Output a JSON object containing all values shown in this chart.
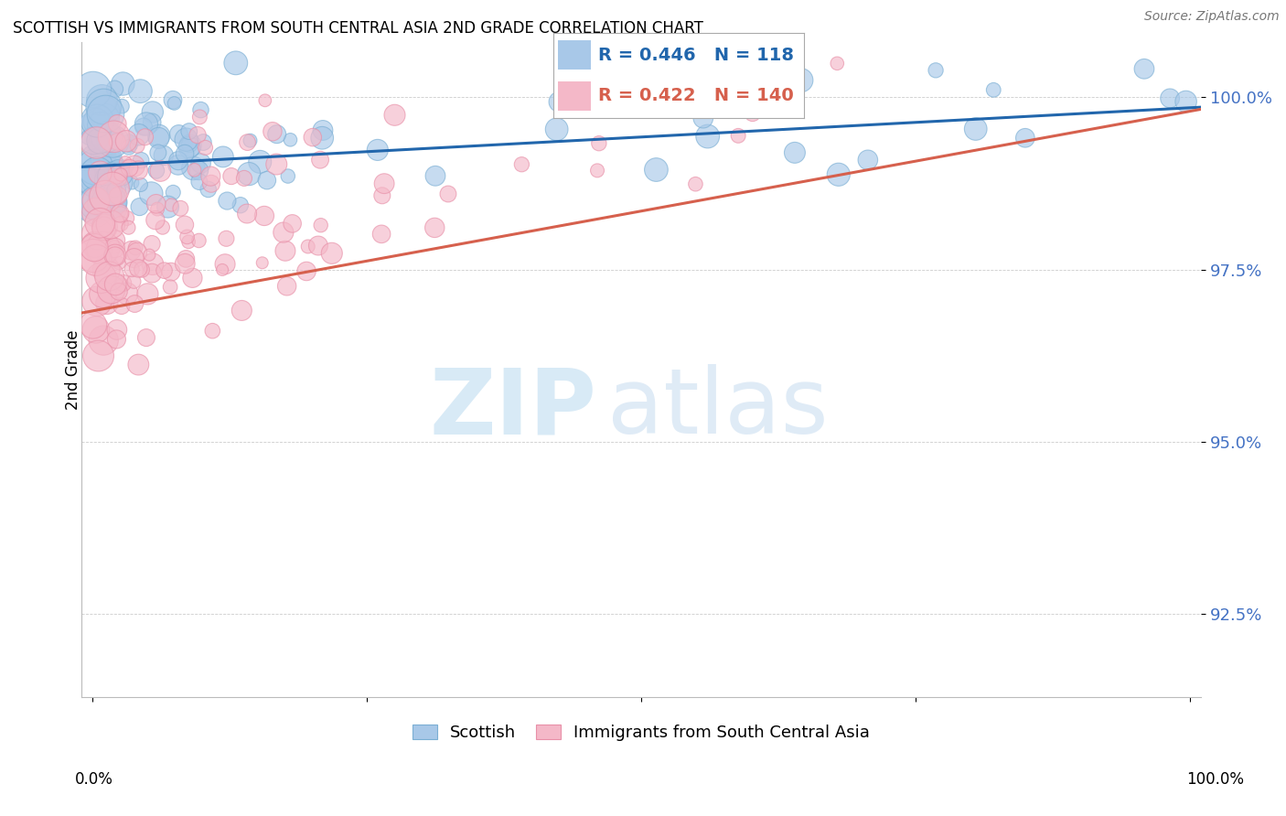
{
  "title": "SCOTTISH VS IMMIGRANTS FROM SOUTH CENTRAL ASIA 2ND GRADE CORRELATION CHART",
  "source": "Source: ZipAtlas.com",
  "ylabel": "2nd Grade",
  "yticks": [
    92.5,
    95.0,
    97.5,
    100.0
  ],
  "ytick_labels": [
    "92.5%",
    "95.0%",
    "97.5%",
    "100.0%"
  ],
  "ylim": [
    91.3,
    100.8
  ],
  "xlim": [
    -0.01,
    1.01
  ],
  "blue_R": 0.446,
  "blue_N": 118,
  "pink_R": 0.422,
  "pink_N": 140,
  "blue_color": "#a8c8e8",
  "pink_color": "#f4b8c8",
  "blue_edge_color": "#7bafd4",
  "pink_edge_color": "#e890a8",
  "blue_line_color": "#2166ac",
  "pink_line_color": "#d6604d",
  "background_color": "#ffffff",
  "legend_label_blue": "Scottish",
  "legend_label_pink": "Immigrants from South Central Asia",
  "blue_seed": 42,
  "pink_seed": 77,
  "watermark_color_zip": "#d8eaf6",
  "watermark_color_atlas": "#c0d8ee"
}
